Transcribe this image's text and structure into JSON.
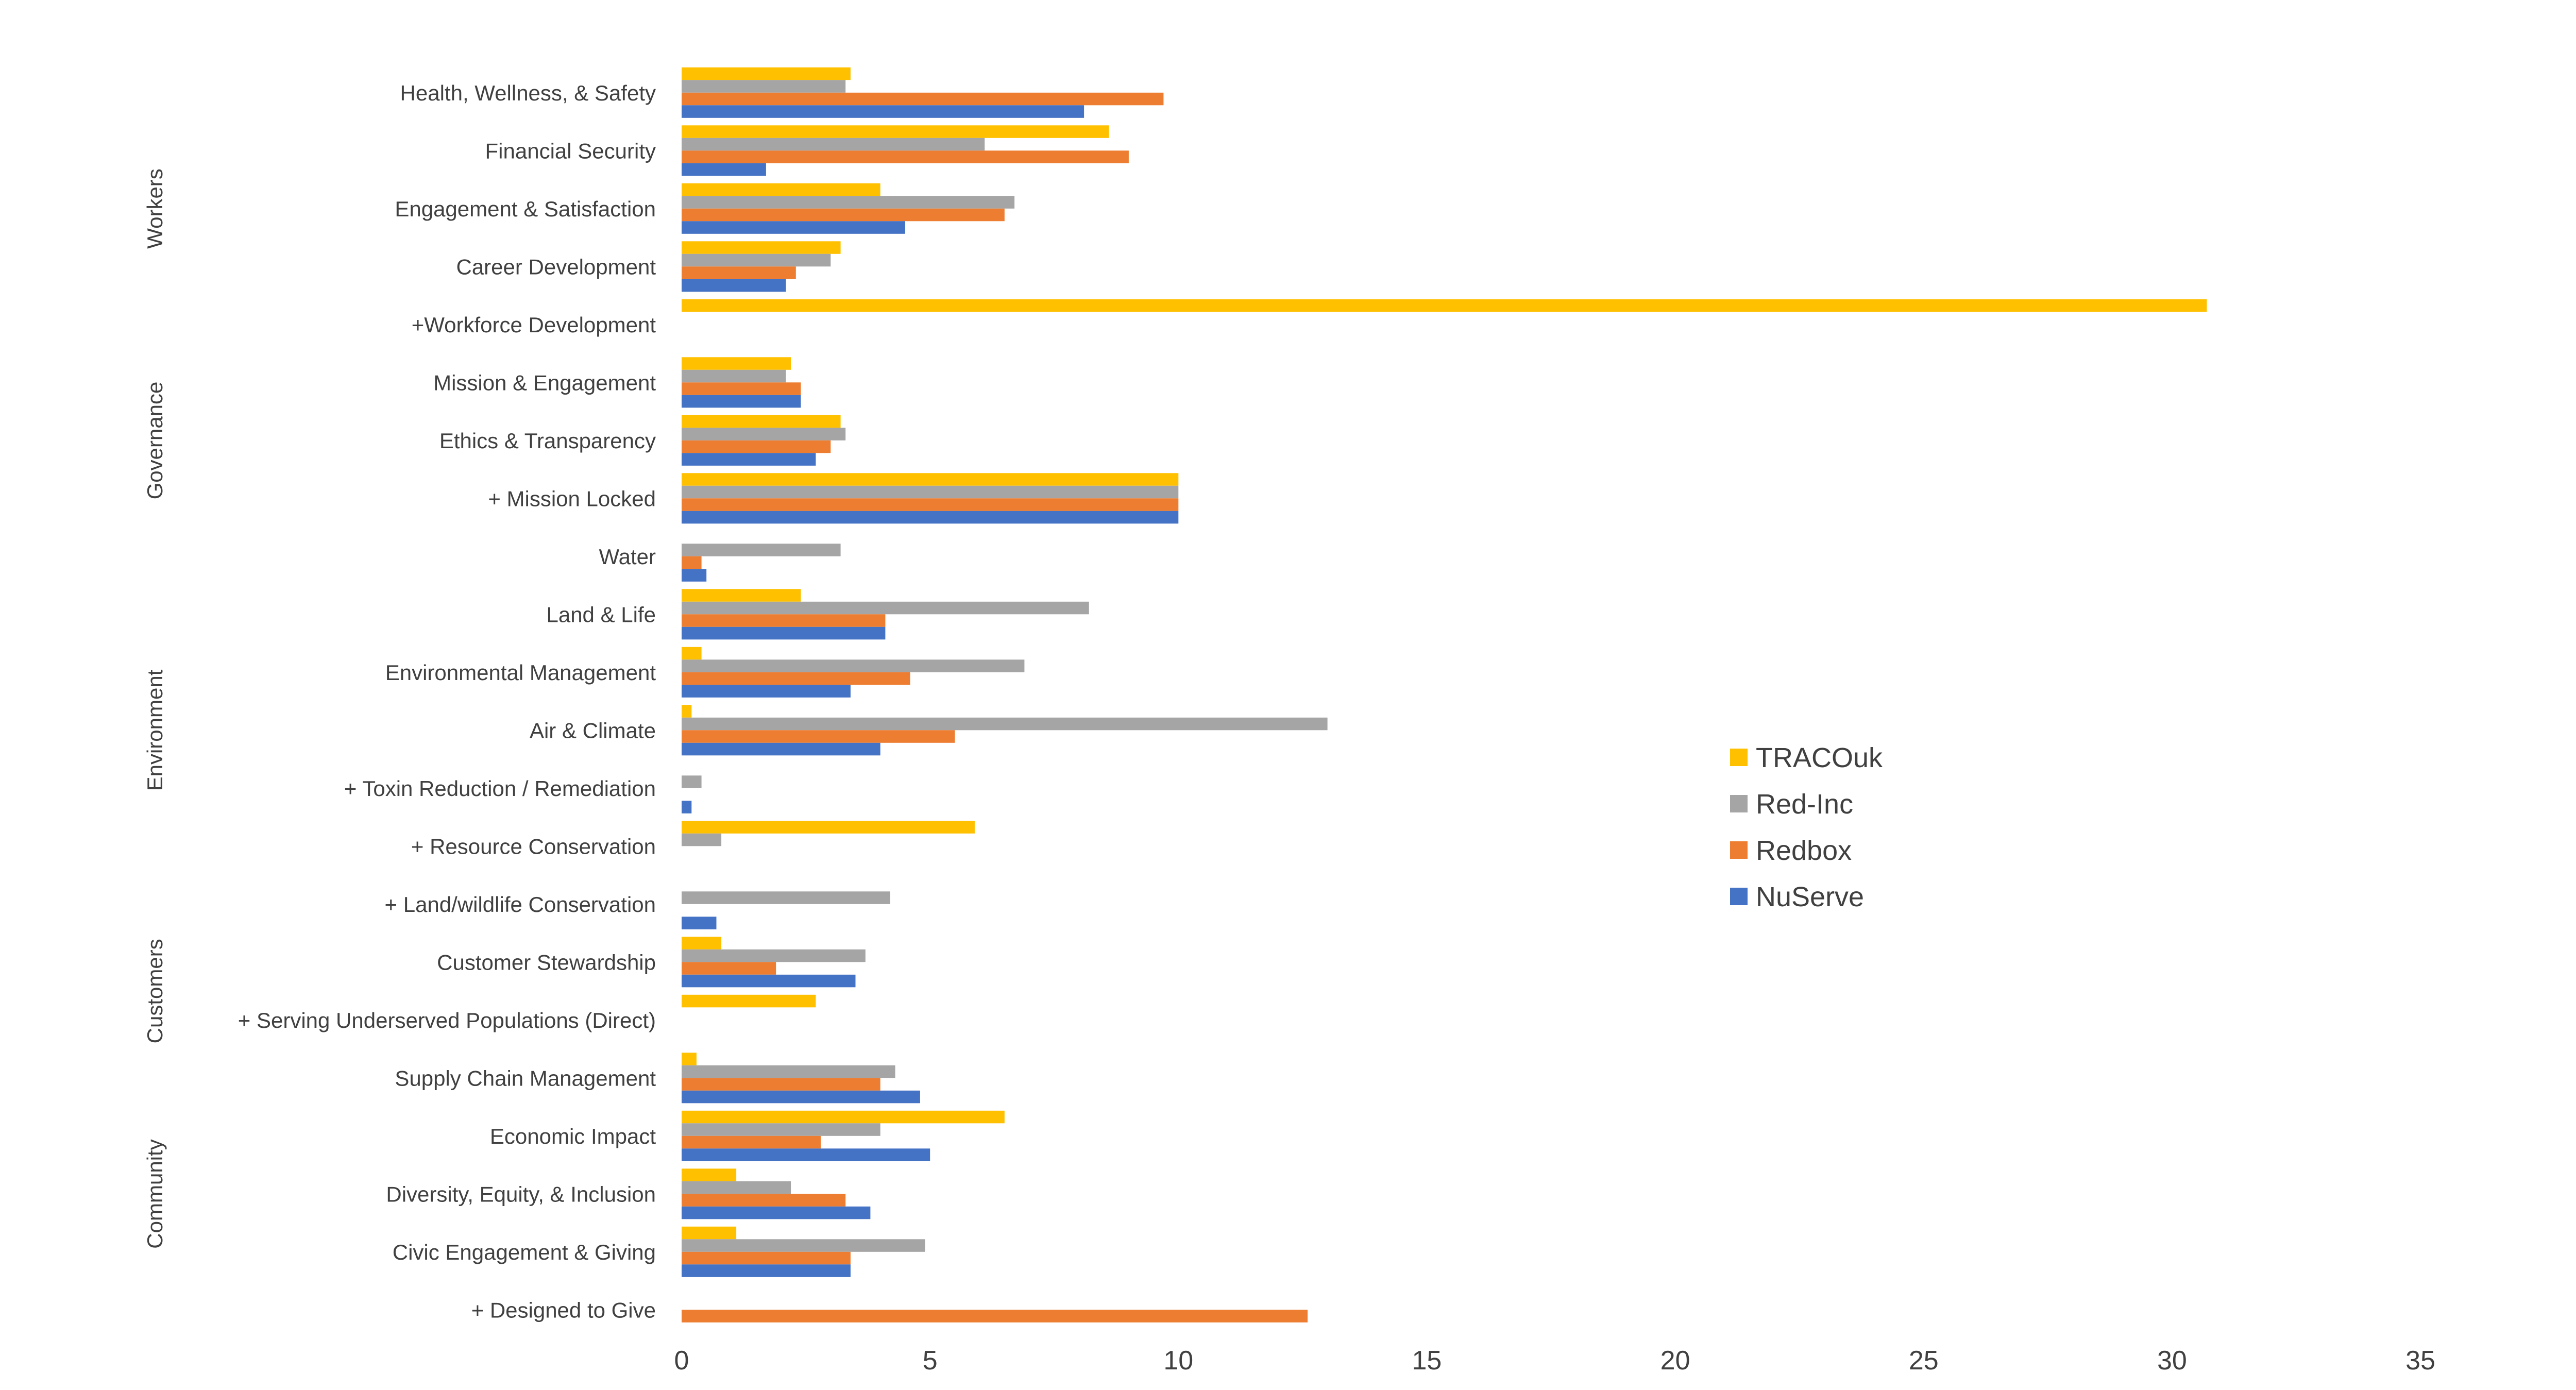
{
  "chart_data": {
    "type": "bar",
    "orientation": "horizontal",
    "xlim": [
      0,
      35
    ],
    "x_ticks": [
      0,
      5,
      10,
      15,
      20,
      25,
      30,
      35
    ],
    "x_tick_labels": [
      "0",
      "5",
      "10",
      "15",
      "20",
      "25",
      "30",
      "35"
    ],
    "grid": false,
    "legend_position": "right",
    "categories": [
      "Health, Wellness, & Safety",
      "Financial Security",
      "Engagement & Satisfaction",
      "Career Development",
      "+Workforce Development",
      "Mission & Engagement",
      "Ethics & Transparency",
      "+ Mission Locked",
      "Water",
      "Land & Life",
      "Environmental Management",
      "Air & Climate",
      "+ Toxin Reduction / Remediation",
      "+ Resource Conservation",
      "+ Land/wildlife Conservation",
      "Customer Stewardship",
      "+ Serving Underserved Populations (Direct)",
      "Supply Chain Management",
      "Economic Impact",
      "Diversity, Equity, & Inclusion",
      "Civic Engagement & Giving",
      "+ Designed to Give"
    ],
    "groups": [
      {
        "label": "Workers",
        "first": 0,
        "last": 4
      },
      {
        "label": "Governance",
        "first": 5,
        "last": 7
      },
      {
        "label": "Environment",
        "first": 8,
        "last": 14
      },
      {
        "label": "Customers",
        "first": 15,
        "last": 16
      },
      {
        "label": "Community",
        "first": 17,
        "last": 21
      }
    ],
    "series": [
      {
        "name": "TRACOuk",
        "color": "#FFC000",
        "values": [
          3.4,
          8.6,
          4.0,
          3.2,
          30.7,
          2.2,
          3.2,
          10.0,
          0,
          2.4,
          0.4,
          0.2,
          0,
          5.9,
          0,
          0.8,
          2.7,
          0.3,
          6.5,
          1.1,
          1.1,
          0
        ]
      },
      {
        "name": "Red-Inc",
        "color": "#A5A5A5",
        "values": [
          3.3,
          6.1,
          6.7,
          3.0,
          0,
          2.1,
          3.3,
          10.0,
          3.2,
          8.2,
          6.9,
          13.0,
          0.4,
          0.8,
          4.2,
          3.7,
          0,
          4.3,
          4.0,
          2.2,
          4.9,
          0
        ]
      },
      {
        "name": "Redbox",
        "color": "#ED7D31",
        "values": [
          9.7,
          9.0,
          6.5,
          2.3,
          0,
          2.4,
          3.0,
          10.0,
          0.4,
          4.1,
          4.6,
          5.5,
          0,
          0,
          0,
          1.9,
          0,
          4.0,
          2.8,
          3.3,
          3.4,
          12.6
        ]
      },
      {
        "name": "NuServe",
        "color": "#4472C4",
        "values": [
          8.1,
          1.7,
          4.5,
          2.1,
          0,
          2.4,
          2.7,
          10.0,
          0.5,
          4.1,
          3.4,
          4.0,
          0.2,
          0,
          0.7,
          3.5,
          0,
          4.8,
          5.0,
          3.8,
          3.4,
          0
        ]
      }
    ]
  }
}
